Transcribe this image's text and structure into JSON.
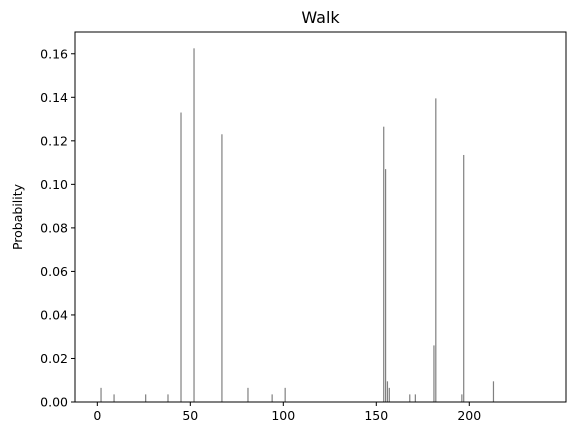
{
  "chart_data": {
    "type": "bar",
    "title": "Walk",
    "xlabel": "",
    "ylabel": "Probability",
    "xlim": [
      -12,
      252
    ],
    "ylim": [
      0,
      0.17
    ],
    "xticks": [
      0,
      50,
      100,
      150,
      200
    ],
    "xtick_labels": [
      "0",
      "50",
      "100",
      "150",
      "200"
    ],
    "yticks": [
      0.0,
      0.02,
      0.04,
      0.06,
      0.08,
      0.1,
      0.12,
      0.14,
      0.16
    ],
    "ytick_labels": [
      "0.00",
      "0.02",
      "0.04",
      "0.06",
      "0.08",
      "0.10",
      "0.12",
      "0.14",
      "0.16"
    ],
    "grid": false,
    "bar_color": "#808080",
    "x": [
      2,
      9,
      26,
      38,
      45,
      52,
      67,
      81,
      94,
      101,
      154,
      155,
      156,
      157,
      168,
      171,
      181,
      182,
      196,
      197,
      213
    ],
    "values": [
      0.0065,
      0.0035,
      0.0035,
      0.0035,
      0.133,
      0.1625,
      0.123,
      0.0065,
      0.0035,
      0.0065,
      0.1265,
      0.107,
      0.0095,
      0.0065,
      0.0035,
      0.0035,
      0.026,
      0.1395,
      0.0035,
      0.1135,
      0.0095
    ]
  }
}
